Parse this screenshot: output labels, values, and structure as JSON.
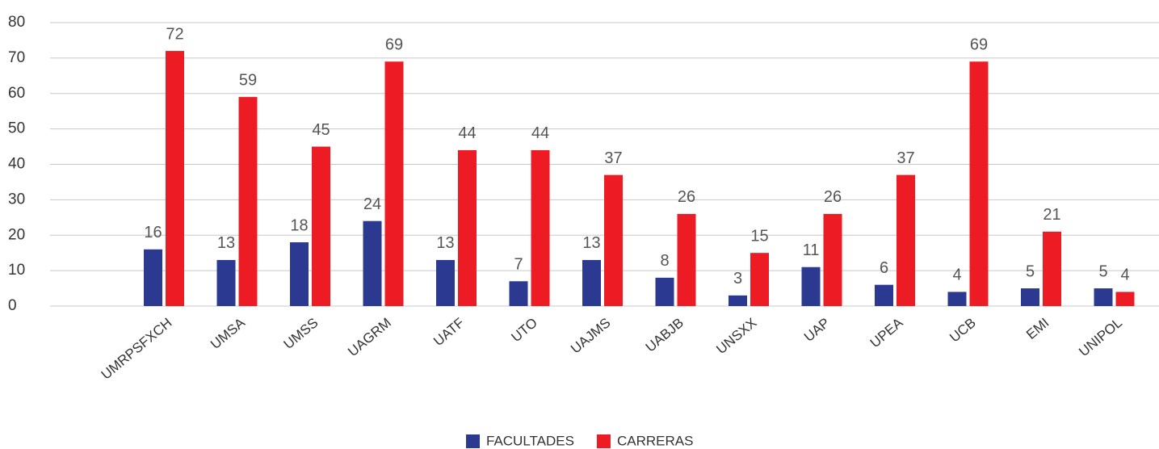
{
  "chart_data": {
    "type": "bar",
    "categories": [
      "UMRPSFXCH",
      "UMSA",
      "UMSS",
      "UAGRM",
      "UATF",
      "UTO",
      "UAJMS",
      "UABJB",
      "UNSXX",
      "UAP",
      "UPEA",
      "UCB",
      "EMI",
      "UNIPOL"
    ],
    "series": [
      {
        "name": "FACULTADES",
        "color": "#2b3990",
        "values": [
          16,
          13,
          18,
          24,
          13,
          7,
          13,
          8,
          3,
          11,
          6,
          4,
          5,
          5
        ]
      },
      {
        "name": "CARRERAS",
        "color": "#ed1c24",
        "values": [
          72,
          59,
          45,
          69,
          44,
          44,
          37,
          26,
          15,
          26,
          37,
          69,
          21,
          4
        ]
      }
    ],
    "ylim": [
      0,
      80
    ],
    "yticks": [
      0,
      10,
      20,
      30,
      40,
      50,
      60,
      70,
      80
    ],
    "grid": true,
    "legend": "bottom"
  }
}
